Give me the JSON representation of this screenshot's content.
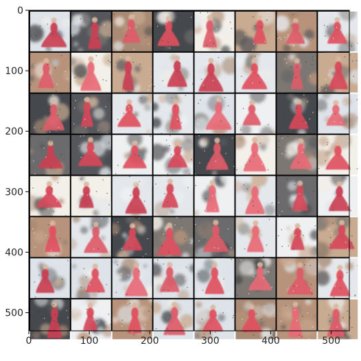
{
  "figure": {
    "grid": {
      "rows": 8,
      "cols": 8,
      "cell_units": 66,
      "gap_units": 2,
      "gap_color": "#000000"
    },
    "axes": {
      "x_ticks": [
        "0",
        "100",
        "200",
        "300",
        "400",
        "500"
      ],
      "y_ticks": [
        "0",
        "100",
        "200",
        "300",
        "400",
        "500"
      ],
      "x_range": [
        0,
        530
      ],
      "y_range": [
        0,
        530
      ],
      "y_inverted": true
    },
    "palette": {
      "dress": [
        "#e0505e",
        "#d6485a",
        "#e86a76",
        "#c93f52",
        "#dd5b69"
      ],
      "light_bg": [
        "#eef0f2",
        "#e4e8ec",
        "#f3efe9",
        "#dde3e9"
      ],
      "dark_bg": [
        "#55575c",
        "#6b6a6c",
        "#45484d",
        "#7c7772"
      ],
      "warm_bg": [
        "#b8937b",
        "#a98a74",
        "#c9ab92"
      ]
    }
  }
}
